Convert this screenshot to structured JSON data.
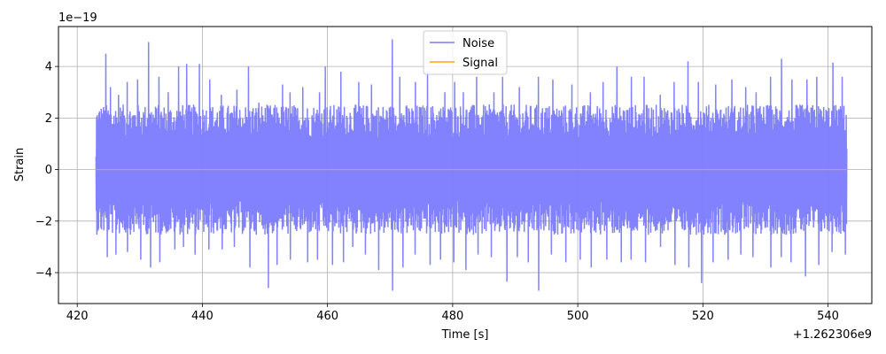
{
  "chart_data": {
    "type": "line",
    "title": "",
    "xlabel": "Time [s]",
    "ylabel": "Strain",
    "x_offset_label": "+1.262306e9",
    "y_scale_label": "1e−19",
    "xlim": [
      417,
      547
    ],
    "ylim": [
      -5.2,
      5.55
    ],
    "x_ticks": [
      420,
      440,
      460,
      480,
      500,
      520,
      540
    ],
    "x_tick_labels": [
      "420",
      "440",
      "460",
      "480",
      "500",
      "520",
      "540"
    ],
    "y_ticks": [
      -4,
      -2,
      0,
      2,
      4
    ],
    "y_tick_labels": [
      "−4",
      "−2",
      "0",
      "2",
      "4"
    ],
    "grid": true,
    "legend_position": "top-center",
    "series": [
      {
        "name": "Noise",
        "color": "#7b7bff",
        "x_range": [
          423,
          543
        ],
        "typical_amplitude": 2.2,
        "peaks": [
          [
            423.3,
            1.95
          ],
          [
            424.5,
            4.5
          ],
          [
            425.3,
            3.2
          ],
          [
            426.6,
            2.9
          ],
          [
            428.0,
            3.4
          ],
          [
            429.6,
            3.5
          ],
          [
            431.4,
            4.95
          ],
          [
            433.0,
            3.6
          ],
          [
            434.5,
            3.0
          ],
          [
            436.2,
            4.0
          ],
          [
            437.5,
            4.1
          ],
          [
            439.5,
            4.1
          ],
          [
            441.2,
            3.5
          ],
          [
            443.0,
            2.9
          ],
          [
            445.5,
            3.1
          ],
          [
            447.3,
            4.0
          ],
          [
            449.0,
            2.6
          ],
          [
            452.8,
            3.3
          ],
          [
            454.0,
            3.0
          ],
          [
            456.0,
            3.2
          ],
          [
            458.7,
            3.0
          ],
          [
            459.6,
            4.0
          ],
          [
            462.1,
            3.8
          ],
          [
            465.0,
            3.4
          ],
          [
            467.0,
            3.3
          ],
          [
            470.3,
            5.05
          ],
          [
            471.5,
            3.6
          ],
          [
            474.0,
            3.4
          ],
          [
            476.0,
            3.8
          ],
          [
            478.7,
            3.0
          ],
          [
            480.3,
            3.4
          ],
          [
            481.7,
            3.0
          ],
          [
            483.8,
            3.6
          ],
          [
            486.6,
            3.0
          ],
          [
            488.0,
            3.6
          ],
          [
            490.6,
            3.2
          ],
          [
            493.7,
            3.6
          ],
          [
            496.0,
            3.5
          ],
          [
            499.0,
            3.3
          ],
          [
            502.0,
            3.0
          ],
          [
            504.0,
            3.4
          ],
          [
            506.2,
            4.0
          ],
          [
            508.5,
            3.6
          ],
          [
            510.6,
            3.6
          ],
          [
            513.2,
            2.9
          ],
          [
            515.4,
            3.4
          ],
          [
            517.6,
            4.2
          ],
          [
            519.3,
            3.4
          ],
          [
            522.0,
            3.3
          ],
          [
            524.6,
            3.5
          ],
          [
            526.8,
            3.2
          ],
          [
            528.5,
            3.0
          ],
          [
            530.8,
            3.6
          ],
          [
            532.5,
            4.3
          ],
          [
            534.2,
            3.5
          ],
          [
            536.6,
            3.5
          ],
          [
            538.2,
            3.6
          ],
          [
            540.8,
            4.15
          ],
          [
            542.2,
            3.6
          ]
        ],
        "troughs": [
          [
            423.2,
            -1.0
          ],
          [
            424.8,
            -3.4
          ],
          [
            426.2,
            -3.3
          ],
          [
            428.0,
            -3.2
          ],
          [
            430.1,
            -3.5
          ],
          [
            431.7,
            -3.8
          ],
          [
            433.2,
            -3.6
          ],
          [
            435.6,
            -3.1
          ],
          [
            437.0,
            -3.0
          ],
          [
            438.8,
            -3.3
          ],
          [
            441.0,
            -3.1
          ],
          [
            443.1,
            -3.1
          ],
          [
            445.1,
            -3.0
          ],
          [
            447.6,
            -3.8
          ],
          [
            450.5,
            -4.6
          ],
          [
            451.9,
            -3.7
          ],
          [
            454.0,
            -3.5
          ],
          [
            456.8,
            -3.6
          ],
          [
            458.4,
            -3.5
          ],
          [
            460.8,
            -3.7
          ],
          [
            462.5,
            -3.6
          ],
          [
            464.0,
            -3.0
          ],
          [
            466.0,
            -3.3
          ],
          [
            468.2,
            -3.9
          ],
          [
            470.4,
            -4.7
          ],
          [
            472.0,
            -3.8
          ],
          [
            474.0,
            -3.3
          ],
          [
            476.4,
            -3.7
          ],
          [
            478.0,
            -3.5
          ],
          [
            480.2,
            -3.6
          ],
          [
            482.1,
            -3.9
          ],
          [
            484.0,
            -3.3
          ],
          [
            486.2,
            -3.4
          ],
          [
            488.7,
            -4.35
          ],
          [
            490.3,
            -3.4
          ],
          [
            492.1,
            -3.6
          ],
          [
            493.7,
            -4.7
          ],
          [
            495.8,
            -3.3
          ],
          [
            498.1,
            -3.6
          ],
          [
            500.4,
            -3.5
          ],
          [
            502.1,
            -3.8
          ],
          [
            504.6,
            -3.5
          ],
          [
            506.9,
            -3.6
          ],
          [
            508.5,
            -3.5
          ],
          [
            510.8,
            -3.6
          ],
          [
            513.2,
            -3.0
          ],
          [
            515.5,
            -3.7
          ],
          [
            517.7,
            -3.8
          ],
          [
            519.8,
            -4.4
          ],
          [
            521.6,
            -3.6
          ],
          [
            524.0,
            -3.5
          ],
          [
            526.0,
            -3.3
          ],
          [
            528.0,
            -3.4
          ],
          [
            530.8,
            -3.8
          ],
          [
            532.5,
            -3.4
          ],
          [
            534.1,
            -3.6
          ],
          [
            536.4,
            -4.15
          ],
          [
            538.5,
            -3.7
          ],
          [
            540.6,
            -3.2
          ],
          [
            542.7,
            -3.3
          ]
        ]
      },
      {
        "name": "Signal",
        "color": "#ffa500",
        "x": [
          423,
          543
        ],
        "y": [
          0,
          0
        ]
      }
    ]
  }
}
